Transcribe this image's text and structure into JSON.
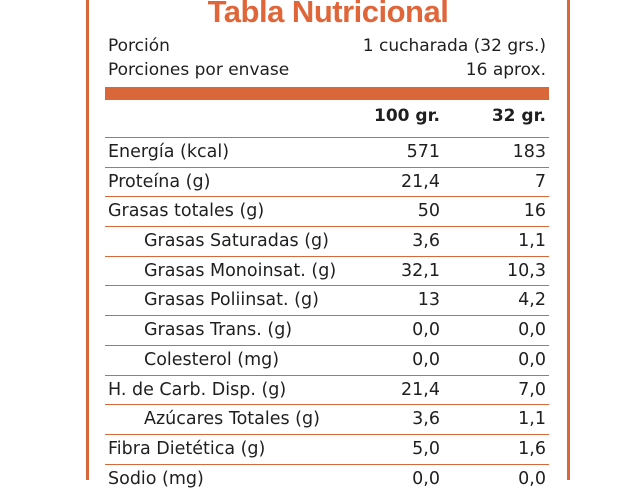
{
  "title": "Tabla Nutricional",
  "serving": {
    "portion_label": "Porción",
    "portion_value": "1 cucharada (32 grs.)",
    "per_container_label": "Porciones por envase",
    "per_container_value": "16 aprox."
  },
  "columns": [
    "100 gr.",
    "32 gr."
  ],
  "rows": [
    {
      "label": "Energía (kcal)",
      "v100": "571",
      "v32": "183",
      "indent": false
    },
    {
      "label": "Proteína (g)",
      "v100": "21,4",
      "v32": "7",
      "indent": false
    },
    {
      "label": "Grasas totales (g)",
      "v100": "50",
      "v32": "16",
      "indent": false
    },
    {
      "label": "Grasas Saturadas (g)",
      "v100": "3,6",
      "v32": "1,1",
      "indent": true
    },
    {
      "label": "Grasas Monoinsat. (g)",
      "v100": "32,1",
      "v32": "10,3",
      "indent": true
    },
    {
      "label": "Grasas Poliinsat. (g)",
      "v100": "13",
      "v32": "4,2",
      "indent": true
    },
    {
      "label": "Grasas Trans. (g)",
      "v100": "0,0",
      "v32": "0,0",
      "indent": true
    },
    {
      "label": "Colesterol (mg)",
      "v100": "0,0",
      "v32": "0,0",
      "indent": true
    },
    {
      "label": "H. de Carb. Disp. (g)",
      "v100": "21,4",
      "v32": "7,0",
      "indent": false
    },
    {
      "label": "Azúcares Totales (g)",
      "v100": "3,6",
      "v32": "1,1",
      "indent": true
    },
    {
      "label": "Fibra Dietética (g)",
      "v100": "5,0",
      "v32": "1,6",
      "indent": false
    },
    {
      "label": "Sodio (mg)",
      "v100": "0,0",
      "v32": "0,0",
      "indent": false
    }
  ],
  "colors": {
    "accent": "#d9673a"
  }
}
